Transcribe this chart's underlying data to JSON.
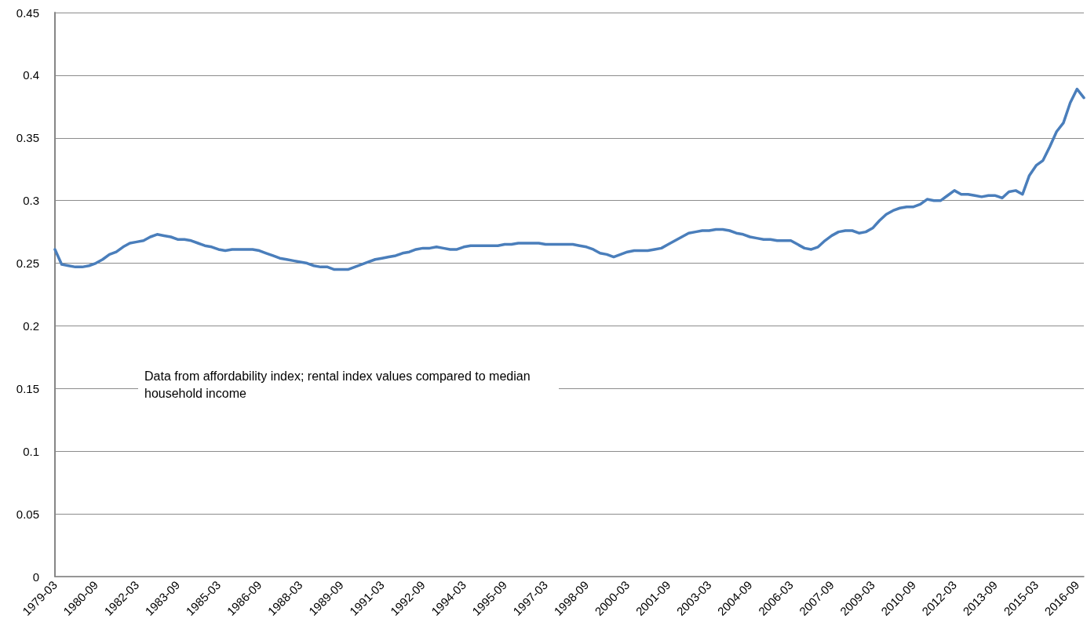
{
  "chart_data": {
    "type": "line",
    "categories": [
      "1979-03",
      null,
      null,
      null,
      null,
      null,
      "1980-09",
      null,
      null,
      null,
      null,
      null,
      "1982-03",
      null,
      null,
      null,
      null,
      null,
      "1983-09",
      null,
      null,
      null,
      null,
      null,
      "1985-03",
      null,
      null,
      null,
      null,
      null,
      "1986-09",
      null,
      null,
      null,
      null,
      null,
      "1988-03",
      null,
      null,
      null,
      null,
      null,
      "1989-09",
      null,
      null,
      null,
      null,
      null,
      "1991-03",
      null,
      null,
      null,
      null,
      null,
      "1992-09",
      null,
      null,
      null,
      null,
      null,
      "1994-03",
      null,
      null,
      null,
      null,
      null,
      "1995-09",
      null,
      null,
      null,
      null,
      null,
      "1997-03",
      null,
      null,
      null,
      null,
      null,
      "1998-09",
      null,
      null,
      null,
      null,
      null,
      "2000-03",
      null,
      null,
      null,
      null,
      null,
      "2001-09",
      null,
      null,
      null,
      null,
      null,
      "2003-03",
      null,
      null,
      null,
      null,
      null,
      "2004-09",
      null,
      null,
      null,
      null,
      null,
      "2006-03",
      null,
      null,
      null,
      null,
      null,
      "2007-09",
      null,
      null,
      null,
      null,
      null,
      "2009-03",
      null,
      null,
      null,
      null,
      null,
      "2010-09",
      null,
      null,
      null,
      null,
      null,
      "2012-03",
      null,
      null,
      null,
      null,
      null,
      "2013-09",
      null,
      null,
      null,
      null,
      null,
      "2015-03",
      null,
      null,
      null,
      null,
      null,
      "2016-09",
      null
    ],
    "series": [
      {
        "color": "#4a7ebb",
        "values": [
          0.261,
          0.249,
          0.248,
          0.247,
          0.247,
          0.248,
          0.25,
          0.253,
          0.257,
          0.259,
          0.263,
          0.266,
          0.267,
          0.268,
          0.271,
          0.273,
          0.272,
          0.271,
          0.269,
          0.269,
          0.268,
          0.266,
          0.264,
          0.263,
          0.261,
          0.26,
          0.261,
          0.261,
          0.261,
          0.261,
          0.26,
          0.258,
          0.256,
          0.254,
          0.253,
          0.252,
          0.251,
          0.25,
          0.248,
          0.247,
          0.247,
          0.245,
          0.245,
          0.245,
          0.247,
          0.249,
          0.251,
          0.253,
          0.254,
          0.255,
          0.256,
          0.258,
          0.259,
          0.261,
          0.262,
          0.262,
          0.263,
          0.262,
          0.261,
          0.261,
          0.263,
          0.264,
          0.264,
          0.264,
          0.264,
          0.264,
          0.265,
          0.265,
          0.266,
          0.266,
          0.266,
          0.266,
          0.265,
          0.265,
          0.265,
          0.265,
          0.265,
          0.264,
          0.263,
          0.261,
          0.258,
          0.257,
          0.255,
          0.257,
          0.259,
          0.26,
          0.26,
          0.26,
          0.261,
          0.262,
          0.265,
          0.268,
          0.271,
          0.274,
          0.275,
          0.276,
          0.276,
          0.277,
          0.277,
          0.276,
          0.274,
          0.273,
          0.271,
          0.27,
          0.269,
          0.269,
          0.268,
          0.268,
          0.268,
          0.265,
          0.262,
          0.261,
          0.263,
          0.268,
          0.272,
          0.275,
          0.276,
          0.276,
          0.274,
          0.275,
          0.278,
          0.284,
          0.289,
          0.292,
          0.294,
          0.295,
          0.295,
          0.297,
          0.301,
          0.3,
          0.3,
          0.304,
          0.308,
          0.305,
          0.305,
          0.304,
          0.303,
          0.304,
          0.304,
          0.302,
          0.307,
          0.308,
          0.305,
          0.32,
          0.328,
          0.332,
          0.343,
          0.355,
          0.362,
          0.378,
          0.389,
          0.382
        ]
      }
    ],
    "ylim": [
      0,
      0.45
    ],
    "yticks": [
      0,
      0.05,
      0.1,
      0.15,
      0.2,
      0.25,
      0.3,
      0.35,
      0.4,
      0.45
    ],
    "grid": "y",
    "marker": "none",
    "line_style": "solid",
    "annotations": [
      "Data from affordability index; rental index values compared to median household income"
    ]
  }
}
